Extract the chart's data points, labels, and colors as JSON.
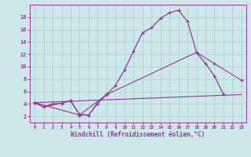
{
  "xlabel": "Windchill (Refroidissement éolien,°C)",
  "bg_color": "#cce8e8",
  "grid_color": "#aacccc",
  "line_color": "#993399",
  "xlim": [
    -0.5,
    23.5
  ],
  "ylim": [
    1.0,
    20.0
  ],
  "xticks": [
    0,
    1,
    2,
    3,
    4,
    5,
    6,
    7,
    8,
    9,
    10,
    11,
    12,
    13,
    14,
    15,
    16,
    17,
    18,
    19,
    20,
    21,
    22,
    23
  ],
  "yticks": [
    2,
    4,
    6,
    8,
    10,
    12,
    14,
    16,
    18
  ],
  "series": [
    {
      "x": [
        0,
        1,
        2,
        3,
        4,
        5,
        6,
        7,
        8,
        9,
        10,
        11,
        12,
        13,
        14,
        15,
        16,
        17,
        18,
        19,
        20,
        21
      ],
      "y": [
        4.2,
        3.5,
        4.0,
        4.1,
        4.5,
        2.3,
        2.2,
        4.1,
        5.5,
        7.0,
        9.5,
        12.5,
        15.5,
        16.3,
        17.8,
        18.7,
        19.1,
        17.3,
        12.3,
        10.5,
        8.5,
        5.5
      ],
      "marker": true,
      "lw": 0.9
    },
    {
      "x": [
        0,
        1,
        3,
        4,
        5,
        6,
        7,
        8
      ],
      "y": [
        4.2,
        3.5,
        4.1,
        4.5,
        2.2,
        2.2,
        4.1,
        5.5
      ],
      "marker": true,
      "lw": 0.8
    },
    {
      "x": [
        0,
        23
      ],
      "y": [
        4.2,
        5.5
      ],
      "marker": false,
      "lw": 0.8
    },
    {
      "x": [
        0,
        5,
        8,
        18,
        20,
        23
      ],
      "y": [
        4.2,
        2.2,
        5.5,
        12.3,
        10.5,
        7.8
      ],
      "marker": true,
      "lw": 0.8
    }
  ]
}
